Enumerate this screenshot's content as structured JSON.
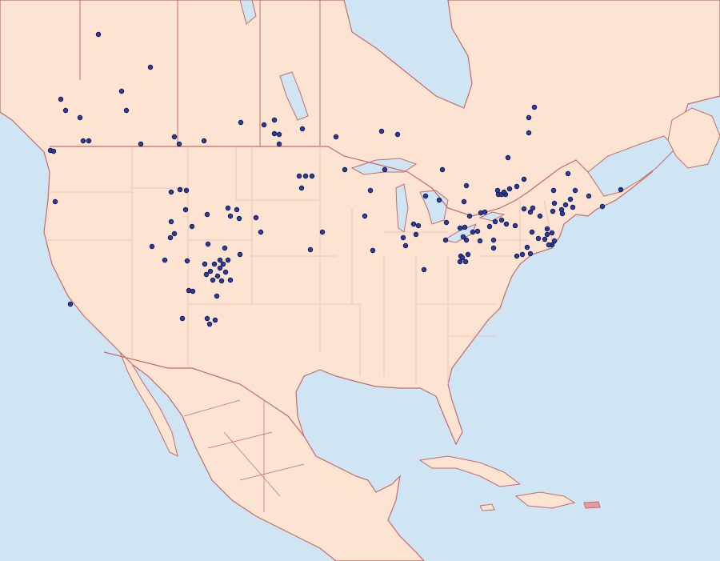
{
  "map": {
    "colors": {
      "ocean": "#cfe5f4",
      "land": "#fde4d2",
      "border": "#c46a6a",
      "minor_border": "#f0b8b0",
      "lake": "#cfe5f4",
      "dot_fill": "#2b3c9e",
      "dot_stroke": "#0a1040",
      "highlight_island": "#e89aa0"
    },
    "markers": "occurrence-dots"
  }
}
